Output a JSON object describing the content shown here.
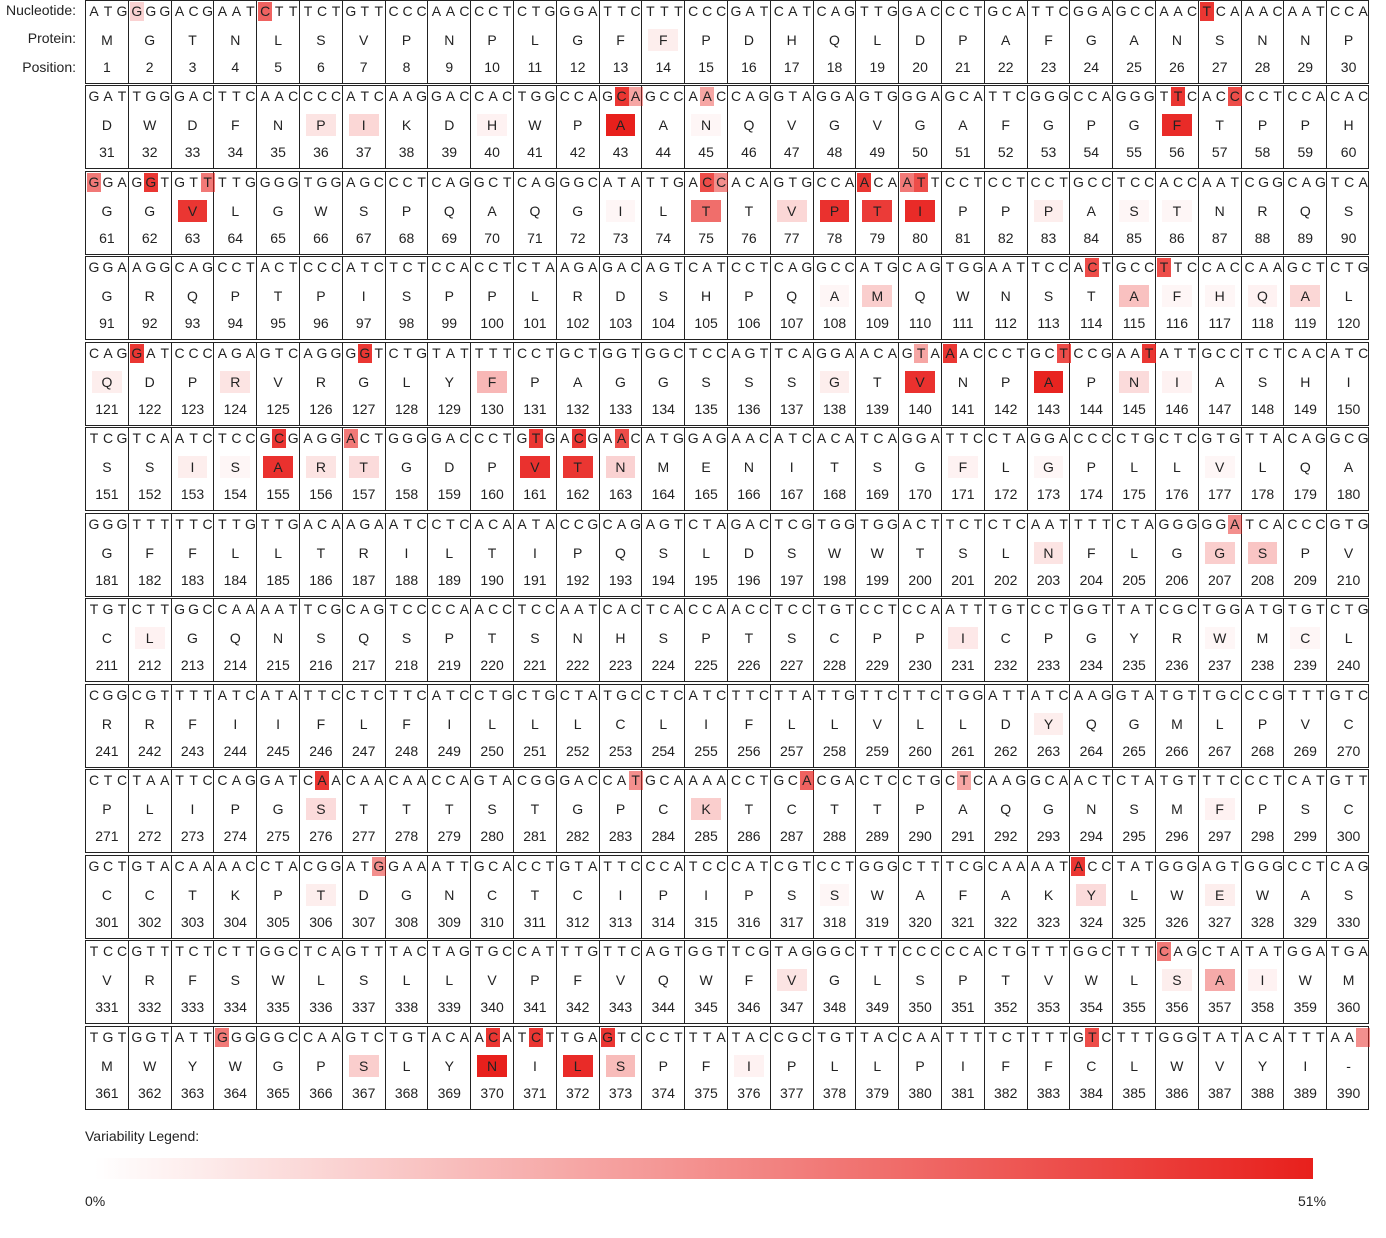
{
  "labels": {
    "nucleotide": "Nucleotide:",
    "protein": "Protein:",
    "position": "Position:"
  },
  "colors": {
    "border": "#222222",
    "heat_min": "#ffffff",
    "heat_max": "#e8201c"
  },
  "legend": {
    "title": "Variability Legend:",
    "min": "0%",
    "max": "51%"
  },
  "nucleotides": "ATGGGGACGAATCTTTCTGTTCCCAACCCTCTGGGATTCTTTCCCGATCATCAGTTGGACCCTGCATTCGGAGCCAACTCAAACAATCCAGATTGGGACTTCAACCCCATCAAGGACCACTGGCCAGCAGCCAACCAGGTAGGAGTGGGAGCATTCGGGCCAGGGTTCACCCCTCCACACGGAGGTGTTTTGGGGTGGAGCCCTCAGGCTCAGGGCATATTGACCACAGTGCCAACAATTCCTCCTCCTGCCTCCACCAATCGGCAGTCAGGAAGGCAGCCTACTCCCATCTCTCCACCTCTAAGAGACAGTCATCCTCAGGCCATGCAGTGGAATTCCACTGCCTTCCACCAAGCTCTGCAGGATCCCAGAGTCAGGGGTCTGTATTTTCCTGCTGGTGGCTCCAGTTCAGGAACAGTAAACCCTGCTCCGAATATTGCCTCTCACATCTCGTCAATCTCCGCGAGGACTGGGGACCCTGTGACGAACATGGAGAACATCACATCAGGATTCCTAGGACCCCTGCTCGTGTTACAGGCGGGGTTTTTCTTGTTGACAAGAATCCTCACAATACCGCAGAGTCTAGACTCGTGGTGGACTTCTCTCAATTTTCTAGGGGGATCACCCGTGTGTCTTGGCCAAAATTCGCAGTCCCCAACCTCCAATCACTCACCAACCTCCTGTCCTCCAATTTGTCCTGGTTATCGCTGGATGTGTCTGCGGCGTTTTATCATATTCCTCTTCATCCTGCTGCTATGCCTCATCTTCTTATTGTTCTTCTGGATTATCAAGGTATGTTGCCCGTTTGTCCTCTAATTCCAGGATCAACAACAACCAGTACGGGACCATGCAAAACCTGCACGACTCCTGCTCAAGGCAACTCTATGTTTCCCTCATGTTGCTGTACAAAACCTACGGATGGAAATTGCACCTGTATTCCCATCCCATCGTCCTGGGCTTTCGCAAAATACCTATGGGAGTGGGCCTCAGTCCGTTTCTCTTGGCTCAGTTTACTAGTGCCATTTGTTCAGTGGTTCGTAGGGCTTTCCCCCACTGTTTGGCTTTCAGCTATATGGATGATGTGGTATTGGGGGCCAAGTCTGTACAACATCTTGAGTCCCTTTATACCGCTGTTACCAATTTTCTTTTGTCTTTGGGTATACATTTAA",
  "protein": "MGTNLSVPNPLGFFPDHQLDPAFGANSNNPDWDFNPIKDHWPAANQVGVGAFGPGFTPPHGGVLGWSPQAQGILTTVPTIPPPASTNRQSGRQPTPISPPLRDSHPQAMQWNSTAFHQALQDPRVRGLYFPAGGSSSGTVNPAPNIASHISSISARTGDPVTNMENITSGFLGPLLVLQAGFFLLTRILTIPQSLDSWWTSLNFLGGSPVCLGQNSQSPTSNHSPTSCPPICPGYRWMCLRRFIIFLFILLLCLIFLLVLLDYQGMLPVCPLIPGSTTTSTGPCKTCTTPAQGNSMFPSCCCTKPTDGNCTCIPIPSSWAFAKYLWEWASVRFSWLSLLVPFVQWFVGLSPTVWLSAIWMMWYWGPSLYNILSPFIPLLPIFFCLWVYI-",
  "aa_variability": [
    1,
    2,
    3,
    4,
    5,
    6,
    7,
    8,
    9,
    10,
    11,
    12,
    13,
    14,
    15,
    16,
    17,
    18,
    19,
    20,
    21,
    22,
    23,
    24,
    25,
    26,
    27,
    28,
    29,
    30,
    31,
    32,
    33,
    34,
    35,
    36,
    37,
    38,
    39,
    40,
    41,
    42,
    43,
    44,
    45,
    46,
    47,
    48,
    49,
    50,
    51,
    52,
    53,
    54,
    55,
    56,
    57,
    58,
    59,
    60,
    61,
    62,
    63,
    64,
    65,
    66,
    67,
    68,
    69,
    70,
    71,
    72,
    73,
    74,
    75,
    76,
    77,
    78,
    79,
    80,
    81,
    82,
    83,
    84,
    85,
    86,
    87,
    88,
    89,
    90,
    91,
    92,
    93,
    94,
    95,
    96,
    97,
    98,
    99,
    100,
    101,
    102,
    103,
    104,
    105,
    106,
    107,
    108,
    109,
    110,
    111,
    112,
    113,
    114,
    115,
    116,
    117,
    118,
    119,
    120,
    121,
    122,
    123,
    124,
    125,
    126,
    127,
    128,
    129,
    130,
    131,
    132,
    133,
    134,
    135,
    136,
    137,
    138,
    139,
    140,
    141,
    142,
    143,
    144,
    145,
    146,
    147,
    148,
    149,
    150,
    151,
    152,
    153,
    154,
    155,
    156,
    157,
    158,
    159,
    160,
    161,
    162,
    163,
    164,
    165,
    166,
    167,
    168,
    169,
    170,
    171,
    172,
    173,
    174,
    175,
    176,
    177,
    178,
    179,
    180,
    181,
    182,
    183,
    184,
    185,
    186,
    187,
    188,
    189,
    190,
    191,
    192,
    193,
    194,
    195,
    196,
    197,
    198,
    199,
    200,
    201,
    202,
    203,
    204,
    205,
    206,
    207,
    208,
    209,
    210,
    211,
    212,
    213,
    214,
    215,
    216,
    217,
    218,
    219,
    220,
    221,
    222,
    223,
    224,
    225,
    226,
    227,
    228,
    229,
    230,
    231,
    232,
    233,
    234,
    235,
    236,
    237,
    238,
    239,
    240,
    241,
    242,
    243,
    244,
    245,
    246,
    247,
    248,
    249,
    250,
    251,
    252,
    253,
    254,
    255,
    256,
    257,
    258,
    259,
    260,
    261,
    262,
    263,
    264,
    265,
    266,
    267,
    268,
    269,
    270,
    271,
    272,
    273,
    274,
    275,
    276,
    277,
    278,
    279,
    280,
    281,
    282,
    283,
    284,
    285,
    286,
    287,
    288,
    289,
    290,
    291,
    292,
    293,
    294,
    295,
    296,
    297,
    298,
    299,
    300,
    301,
    302,
    303,
    304,
    305,
    306,
    307,
    308,
    309,
    310,
    311,
    312,
    313,
    314,
    315,
    316,
    317,
    318,
    319,
    320,
    321,
    322,
    323,
    324,
    325,
    326,
    327,
    328,
    329,
    330,
    331,
    332,
    333,
    334,
    335,
    336,
    337,
    338,
    339,
    340,
    341,
    342,
    343,
    344,
    345,
    346,
    347,
    348,
    349,
    350,
    351,
    352,
    353,
    354,
    355,
    356,
    357,
    358,
    359,
    360,
    361,
    362,
    363,
    364,
    365,
    366,
    367,
    368,
    369,
    370,
    371,
    372,
    373,
    374,
    375,
    376,
    377,
    378,
    379,
    380,
    381,
    382,
    383,
    384,
    385,
    386,
    387,
    388,
    389,
    390
  ],
  "aa_heat": {
    "14": 0.08,
    "36": 0.12,
    "37": 0.18,
    "40": 0.06,
    "43": 1.0,
    "45": 0.04,
    "56": 0.95,
    "63": 0.9,
    "73": 0.04,
    "75": 0.65,
    "77": 0.18,
    "78": 0.92,
    "79": 0.88,
    "80": 0.95,
    "83": 0.08,
    "85": 0.04,
    "86": 0.04,
    "108": 0.04,
    "109": 0.22,
    "115": 0.28,
    "116": 0.04,
    "117": 0.04,
    "118": 0.06,
    "119": 0.18,
    "121": 0.08,
    "124": 0.12,
    "130": 0.32,
    "138": 0.08,
    "140": 0.92,
    "143": 0.98,
    "145": 0.16,
    "146": 0.06,
    "153": 0.08,
    "154": 0.04,
    "155": 0.92,
    "156": 0.12,
    "157": 0.16,
    "161": 0.92,
    "162": 0.9,
    "163": 0.2,
    "171": 0.06,
    "173": 0.04,
    "177": 0.04,
    "203": 0.12,
    "207": 0.22,
    "208": 0.26,
    "212": 0.06,
    "231": 0.1,
    "237": 0.04,
    "239": 0.04,
    "263": 0.08,
    "276": 0.16,
    "285": 0.22,
    "297": 0.06,
    "306": 0.08,
    "318": 0.04,
    "324": 0.16,
    "327": 0.08,
    "347": 0.12,
    "356": 0.08,
    "357": 0.38,
    "358": 0.06,
    "367": 0.22,
    "370": 1.0,
    "372": 0.95,
    "373": 0.3,
    "376": 0.06
  },
  "nt_heat": {
    "12": 0.7,
    "78": 0.9,
    "3": 0.2,
    "127": 0.9,
    "128": 0.4,
    "133": 0.4,
    "166": 0.9,
    "170": 0.8,
    "180": 0.6,
    "184": 0.9,
    "188": 0.6,
    "223": 0.8,
    "224": 0.5,
    "234": 0.9,
    "237": 0.6,
    "238": 0.8,
    "340": 0.8,
    "345": 0.8,
    "363": 0.9,
    "379": 0.9,
    "418": 0.4,
    "420": 0.9,
    "428": 0.8,
    "434": 0.9,
    "463": 0.9,
    "468": 0.6,
    "481": 0.9,
    "484": 0.9,
    "487": 0.8,
    "620": 0.5,
    "826": 0.9,
    "848": 0.5,
    "860": 0.7,
    "871": 0.4,
    "920": 0.5,
    "969": 0.9,
    "1065": 0.6,
    "1089": 0.6,
    "1108": 0.9,
    "1111": 0.9,
    "1116": 0.9,
    "1150": 0.8,
    "1169": 0.5
  }
}
